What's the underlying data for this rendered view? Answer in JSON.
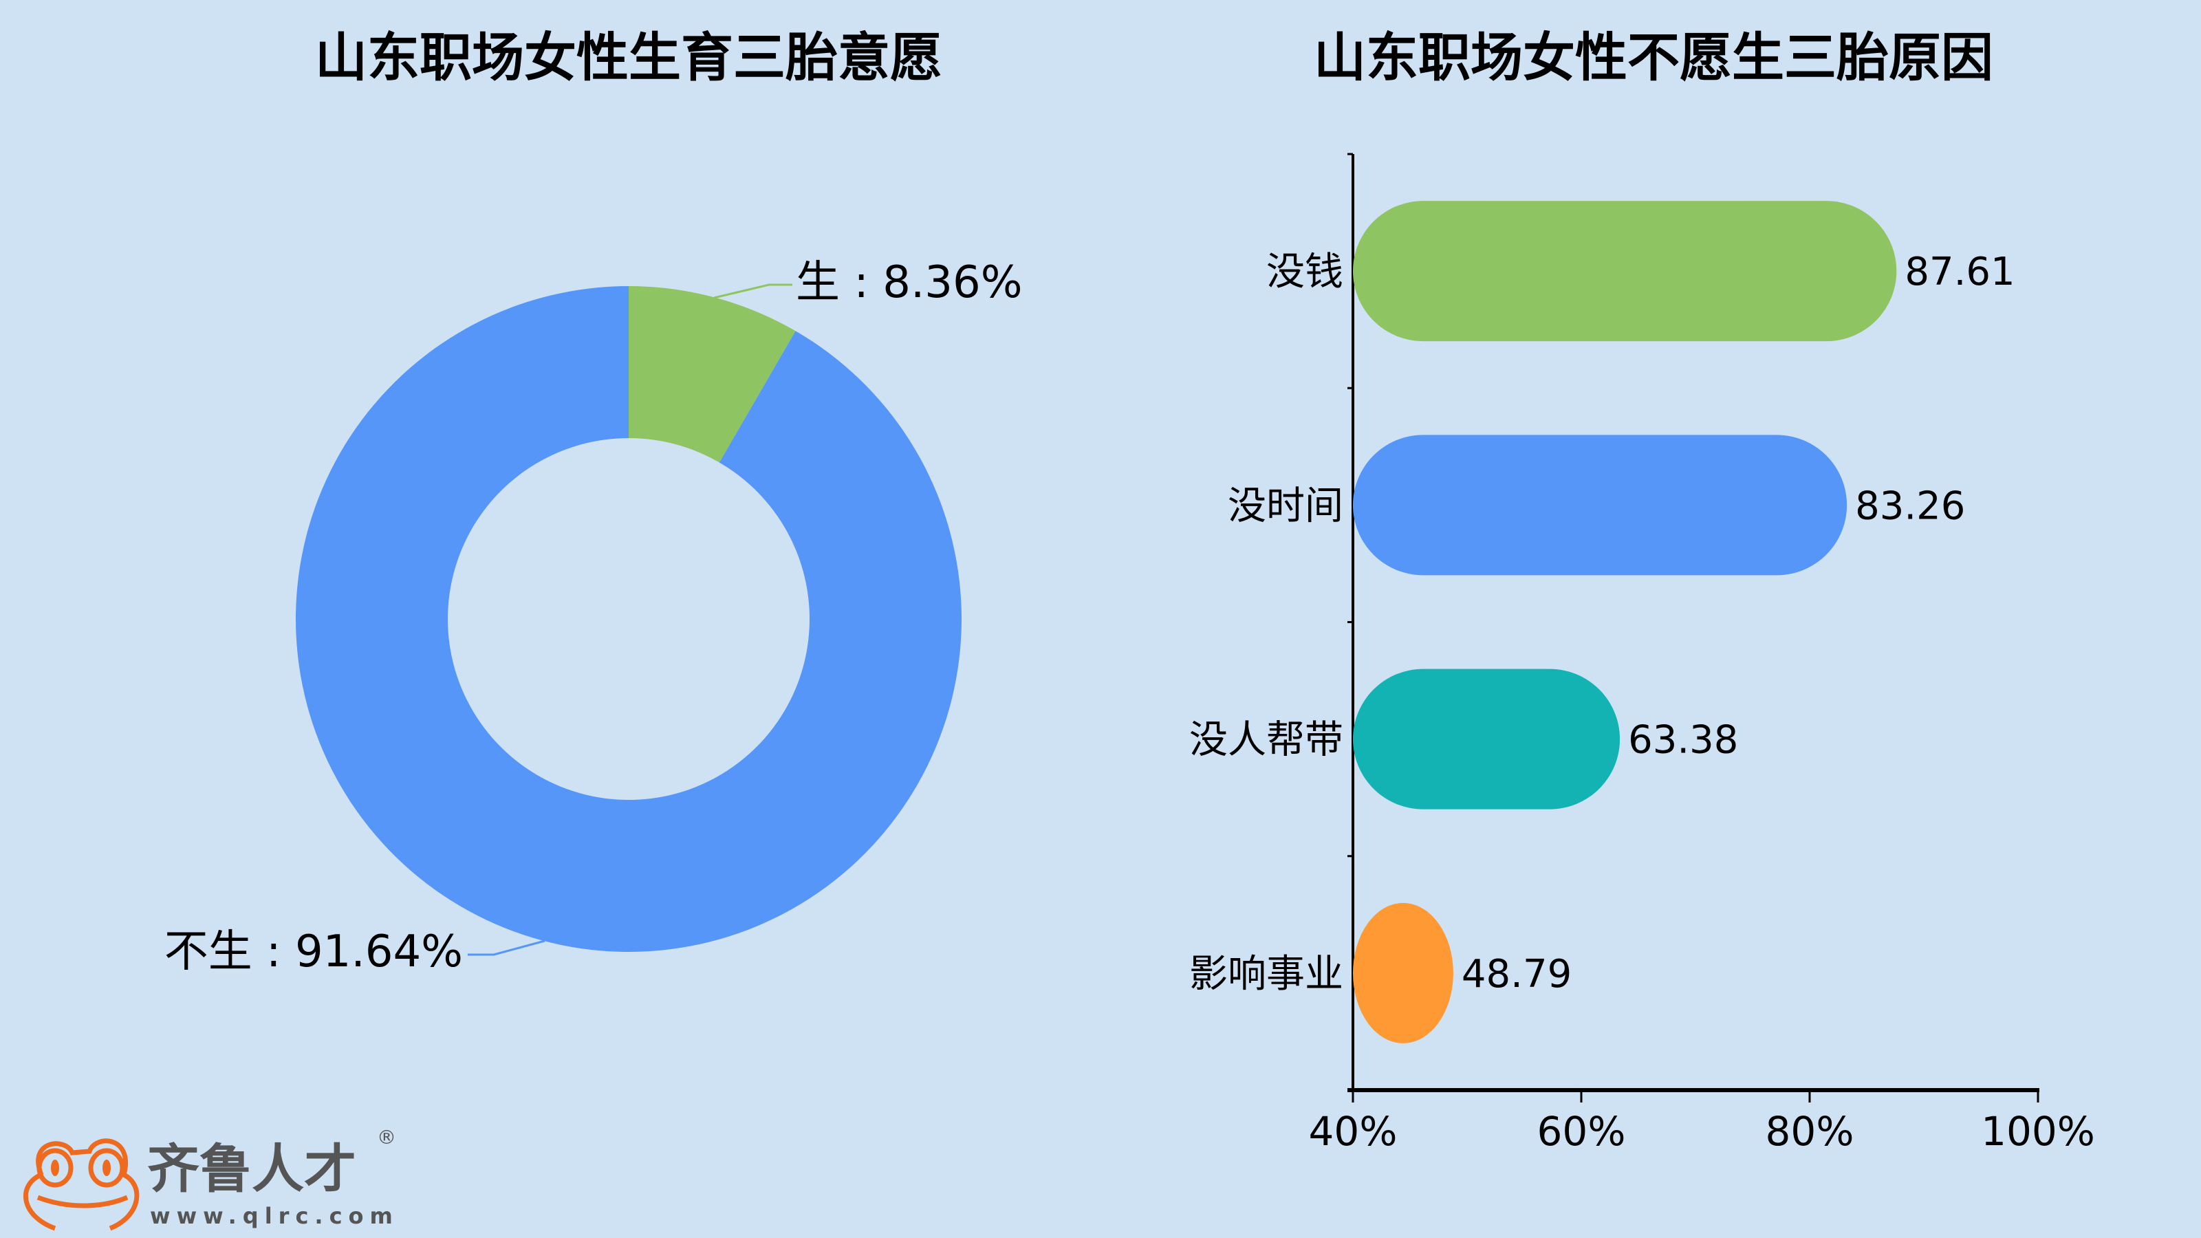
{
  "chart_data": [
    {
      "type": "pie",
      "title": "山东职场女性生育三胎意愿",
      "donut": true,
      "slices": [
        {
          "label": "生",
          "value": 8.36,
          "display": "生 : 8.36%",
          "color": "#8fc462"
        },
        {
          "label": "不生",
          "value": 91.64,
          "display": "不生 : 91.64%",
          "color": "#5596f8"
        }
      ]
    },
    {
      "type": "bar",
      "orientation": "horizontal",
      "title": "山东职场女性不愿生三胎原因",
      "categories": [
        "没钱",
        "没时间",
        "没人帮带",
        "影响事业"
      ],
      "values": [
        87.61,
        83.26,
        63.38,
        48.79
      ],
      "value_labels": [
        "87.61",
        "83.26",
        "63.38",
        "48.79"
      ],
      "colors": [
        "#8fc462",
        "#5596f8",
        "#14b3b3",
        "#ff9933"
      ],
      "xlim": [
        40,
        100
      ],
      "xticks": [
        40,
        60,
        80,
        100
      ],
      "xtick_labels": [
        "40%",
        "60%",
        "80%",
        "100%"
      ],
      "xlabel": "",
      "ylabel": ""
    }
  ],
  "logo": {
    "name": "齐鲁人才",
    "url": "www.qlrc.com",
    "mark": "®"
  }
}
